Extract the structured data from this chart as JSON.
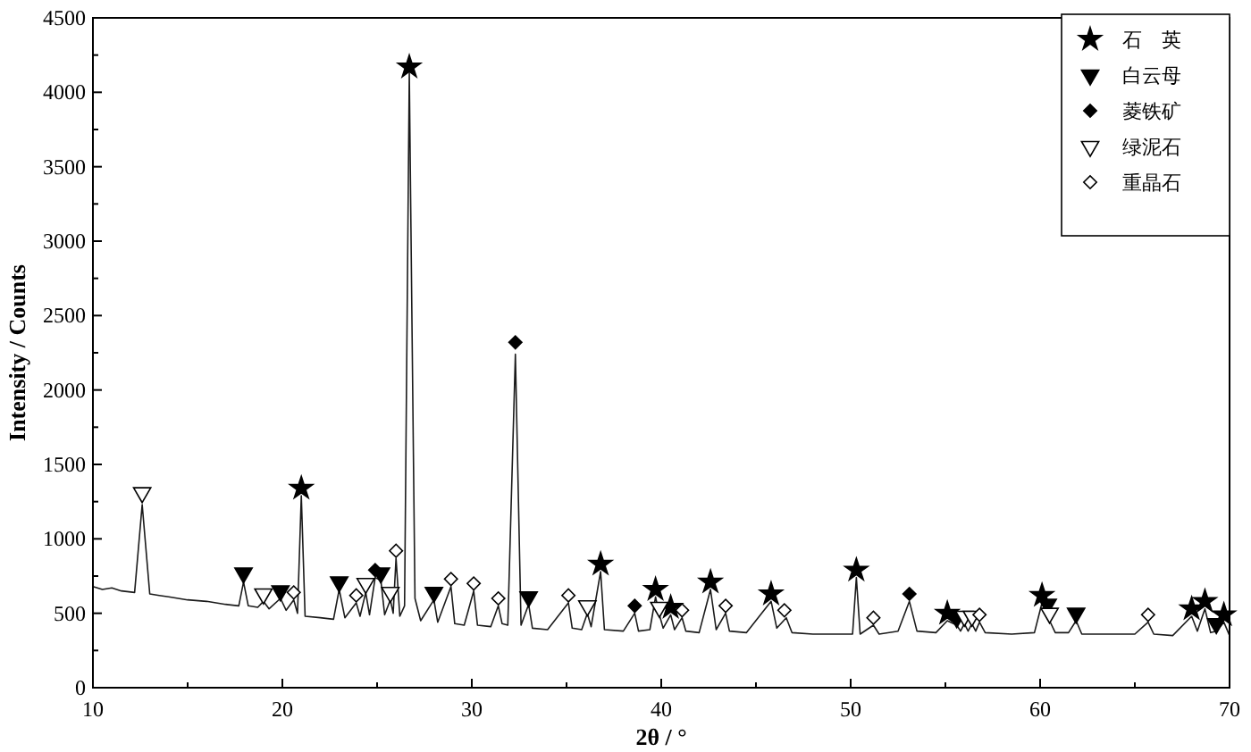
{
  "chart_data": {
    "type": "line",
    "xlabel": "2θ / °",
    "ylabel": "Intensity / Counts",
    "xlim": [
      10,
      70
    ],
    "xticks": [
      10,
      {
        "value": 15,
        "label": null
      },
      20,
      {
        "value": 25,
        "label": null
      },
      30,
      {
        "value": 35,
        "label": null
      },
      40,
      {
        "value": 45,
        "label": null
      },
      50,
      {
        "value": 55,
        "label": null
      },
      60,
      {
        "value": 65,
        "label": null
      },
      70
    ],
    "ylim": [
      0,
      4500
    ],
    "yticks": [
      0,
      {
        "value": 250,
        "label": null
      },
      500,
      {
        "value": 750,
        "label": null
      },
      1000,
      {
        "value": 1250,
        "label": null
      },
      1500,
      {
        "value": 1750,
        "label": null
      },
      2000,
      {
        "value": 2250,
        "label": null
      },
      2500,
      {
        "value": 2750,
        "label": null
      },
      3000,
      {
        "value": 3250,
        "label": null
      },
      3500,
      {
        "value": 3750,
        "label": null
      },
      4000,
      {
        "value": 4250,
        "label": null
      },
      4500
    ],
    "grid": false,
    "legend": "top right",
    "series": [
      {
        "color": "#1a1a1a",
        "marker": "none",
        "line_style": "solid",
        "x": [
          10,
          10.5,
          11,
          11.5,
          12.2,
          12.6,
          13,
          13.5,
          14,
          15,
          16,
          17,
          17.7,
          17.95,
          18.2,
          18.7,
          19,
          19.3,
          19.9,
          20.2,
          20.6,
          20.8,
          21,
          21.2,
          22,
          22.7,
          23,
          23.3,
          23.9,
          24.1,
          24.4,
          24.6,
          24.9,
          25.2,
          25.4,
          25.7,
          25.85,
          26,
          26.2,
          26.45,
          26.7,
          26.85,
          27,
          27.3,
          28,
          28.2,
          28.9,
          29.1,
          29.6,
          30.1,
          30.3,
          31,
          31.4,
          31.6,
          31.9,
          32.3,
          32.6,
          33,
          33.2,
          34,
          35.1,
          35.3,
          35.8,
          36.1,
          36.3,
          36.8,
          37,
          38,
          38.6,
          38.8,
          39.4,
          39.7,
          39.9,
          40.1,
          40.5,
          40.7,
          41.1,
          41.3,
          42,
          42.6,
          42.9,
          43.4,
          43.6,
          44.5,
          45.8,
          46.1,
          46.6,
          46.9,
          48,
          49.5,
          50.1,
          50.3,
          50.5,
          51.2,
          51.5,
          52.5,
          53.1,
          53.5,
          54.5,
          55.1,
          55.6,
          55.8,
          56,
          56.2,
          56.4,
          56.6,
          56.8,
          57.1,
          58.5,
          59.7,
          60.1,
          60.3,
          60.5,
          60.8,
          61.5,
          61.9,
          62.2,
          63.5,
          65,
          65.7,
          66,
          67,
          68,
          68.3,
          68.7,
          69,
          69.3,
          69.7,
          70
        ],
        "values": [
          680,
          660,
          670,
          650,
          640,
          1230,
          630,
          620,
          610,
          590,
          580,
          560,
          550,
          710,
          550,
          540,
          580,
          530,
          600,
          520,
          590,
          500,
          1290,
          480,
          470,
          460,
          660,
          470,
          570,
          480,
          640,
          490,
          740,
          720,
          490,
          590,
          500,
          870,
          480,
          550,
          4130,
          2350,
          600,
          450,
          590,
          440,
          680,
          430,
          420,
          650,
          420,
          410,
          550,
          430,
          420,
          2240,
          420,
          560,
          400,
          390,
          570,
          400,
          390,
          500,
          410,
          780,
          390,
          380,
          500,
          380,
          390,
          610,
          490,
          400,
          490,
          390,
          470,
          380,
          370,
          660,
          390,
          500,
          380,
          370,
          580,
          400,
          470,
          370,
          360,
          360,
          360,
          740,
          360,
          420,
          360,
          380,
          580,
          380,
          370,
          450,
          420,
          380,
          430,
          380,
          430,
          380,
          440,
          370,
          360,
          370,
          570,
          500,
          450,
          370,
          370,
          450,
          360,
          360,
          360,
          440,
          360,
          350,
          480,
          380,
          530,
          370,
          380,
          440,
          350
        ]
      },
      {
        "type": "scatter",
        "name": "石　英",
        "color": "#000000",
        "marker": "star",
        "x": [
          21,
          26.7,
          36.8,
          39.7,
          40.5,
          42.6,
          45.8,
          50.3,
          55.1,
          60.1,
          68,
          68.7,
          69.7
        ],
        "values": [
          1340,
          4170,
          830,
          660,
          540,
          710,
          630,
          790,
          500,
          620,
          530,
          580,
          490
        ]
      },
      {
        "type": "scatter",
        "name": "白云母",
        "color": "#000000",
        "marker": "triangle",
        "x": [
          17.95,
          19.9,
          23,
          25.2,
          28,
          33,
          55.6,
          60.4,
          61.9,
          69.3
        ],
        "values": [
          770,
          650,
          710,
          770,
          640,
          610,
          470,
          560,
          500,
          430
        ]
      },
      {
        "type": "scatter",
        "name": "菱铁矿",
        "color": "#000000",
        "marker": "diamond",
        "x": [
          24.9,
          32.3,
          38.6,
          53.1
        ],
        "values": [
          790,
          2320,
          550,
          630
        ]
      },
      {
        "type": "scatter",
        "name": "绿泥石",
        "color": "#ffffff",
        "marker": "triangle",
        "x": [
          12.6,
          19,
          24.4,
          25.7,
          36.1,
          39.9,
          56,
          56.4,
          60.5
        ],
        "values": [
          1310,
          630,
          700,
          640,
          550,
          540,
          480,
          480,
          500
        ]
      },
      {
        "type": "scatter",
        "name": "重晶石",
        "color": "#ffffff",
        "marker": "diamond",
        "x": [
          20.6,
          23.9,
          26,
          28.9,
          30.1,
          31.4,
          35.1,
          41.1,
          43.4,
          46.5,
          51.2,
          56.8,
          65.7
        ],
        "values": [
          640,
          620,
          920,
          730,
          700,
          600,
          620,
          520,
          550,
          520,
          470,
          490,
          490
        ]
      }
    ]
  }
}
